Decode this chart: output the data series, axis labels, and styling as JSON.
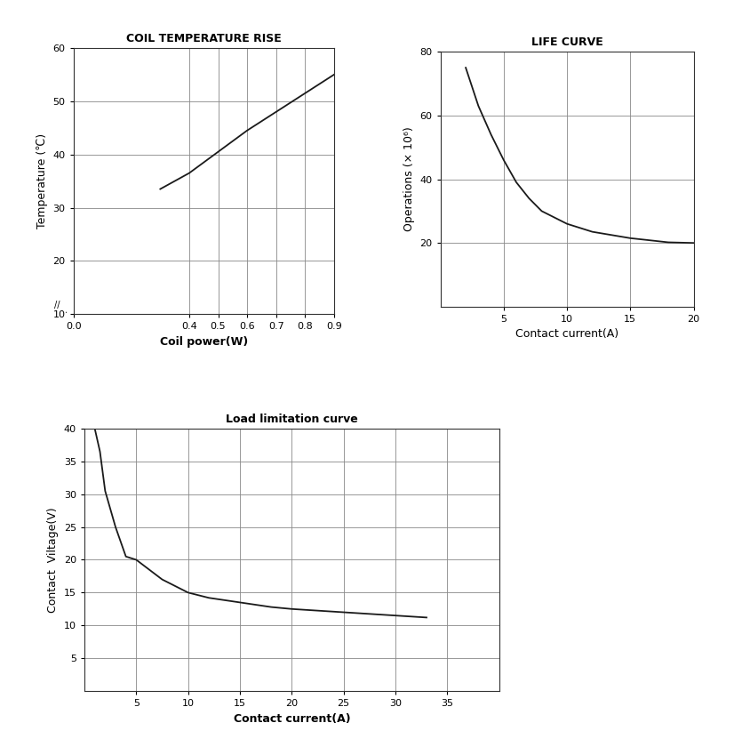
{
  "chart1": {
    "title": "COIL TEMPERATURE RISE",
    "xlabel": "Coil power（W）",
    "ylabel": "Temperature (℃)",
    "xlim": [
      0,
      0.9
    ],
    "ylim": [
      10,
      60
    ],
    "xticks": [
      0,
      0.4,
      0.5,
      0.6,
      0.7,
      0.8,
      0.9
    ],
    "yticks": [
      10,
      20,
      30,
      40,
      50,
      60
    ],
    "x": [
      0.3,
      0.4,
      0.5,
      0.6,
      0.7,
      0.8,
      0.9
    ],
    "y": [
      33.5,
      36.5,
      40.5,
      44.5,
      48.0,
      51.5,
      55.0
    ]
  },
  "chart2": {
    "title": "LIFE CURVE",
    "xlabel": "Contact current(A)",
    "ylabel": "Operations (× 10⁶)",
    "xlim": [
      0,
      20
    ],
    "ylim": [
      0,
      80
    ],
    "xticks": [
      5,
      10,
      15,
      20
    ],
    "yticks": [
      20,
      40,
      60,
      80
    ],
    "x": [
      2.0,
      3.0,
      4.0,
      5.0,
      6.0,
      7.0,
      8.0,
      10.0,
      12.0,
      15.0,
      18.0,
      20.0
    ],
    "y": [
      75.0,
      63.0,
      54.0,
      46.0,
      39.0,
      34.0,
      30.0,
      26.0,
      23.5,
      21.5,
      20.2,
      20.0
    ]
  },
  "chart3": {
    "title": "Load limitation curve",
    "xlabel": "Contact current（A）",
    "ylabel": "Contact  Viltage（V）",
    "xlim": [
      0,
      40
    ],
    "ylim": [
      0,
      40
    ],
    "xticks": [
      5,
      10,
      15,
      20,
      25,
      30,
      35
    ],
    "yticks": [
      5,
      10,
      15,
      20,
      25,
      30,
      35,
      40
    ],
    "x": [
      1.0,
      1.5,
      2.0,
      3.0,
      4.0,
      5.0,
      6.0,
      7.5,
      10.0,
      12.0,
      15.0,
      18.0,
      20.0,
      25.0,
      30.0,
      33.0
    ],
    "y": [
      40.0,
      36.5,
      30.5,
      25.0,
      20.5,
      20.0,
      18.8,
      17.0,
      15.0,
      14.2,
      13.5,
      12.8,
      12.5,
      12.0,
      11.5,
      11.2
    ]
  },
  "line_color": "#1a1a1a",
  "grid_color": "#888888",
  "bg_color": "#ffffff",
  "title_fontsize": 9,
  "label_fontsize": 9,
  "tick_fontsize": 8
}
